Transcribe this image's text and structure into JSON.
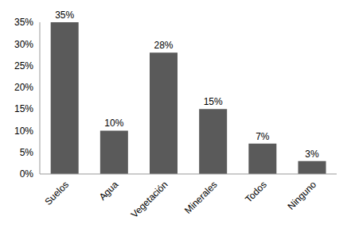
{
  "chart_data": {
    "type": "bar",
    "categories": [
      "Suelos",
      "Agua",
      "Vegetación",
      "Minerales",
      "Todos",
      "Ninguno"
    ],
    "values": [
      35,
      10,
      28,
      15,
      7,
      3
    ],
    "value_labels": [
      "35%",
      "10%",
      "28%",
      "15%",
      "7%",
      "3%"
    ],
    "color": "#5a5a5a",
    "ylim": [
      0,
      35
    ],
    "yticks": [
      {
        "value": 0,
        "label": "0%"
      },
      {
        "value": 5,
        "label": "5%"
      },
      {
        "value": 10,
        "label": "10%"
      },
      {
        "value": 15,
        "label": "15%"
      },
      {
        "value": 20,
        "label": "20%"
      },
      {
        "value": 25,
        "label": "25%"
      },
      {
        "value": 30,
        "label": "30%"
      },
      {
        "value": 35,
        "label": "35%"
      }
    ],
    "grid": false,
    "data_labels": true
  }
}
